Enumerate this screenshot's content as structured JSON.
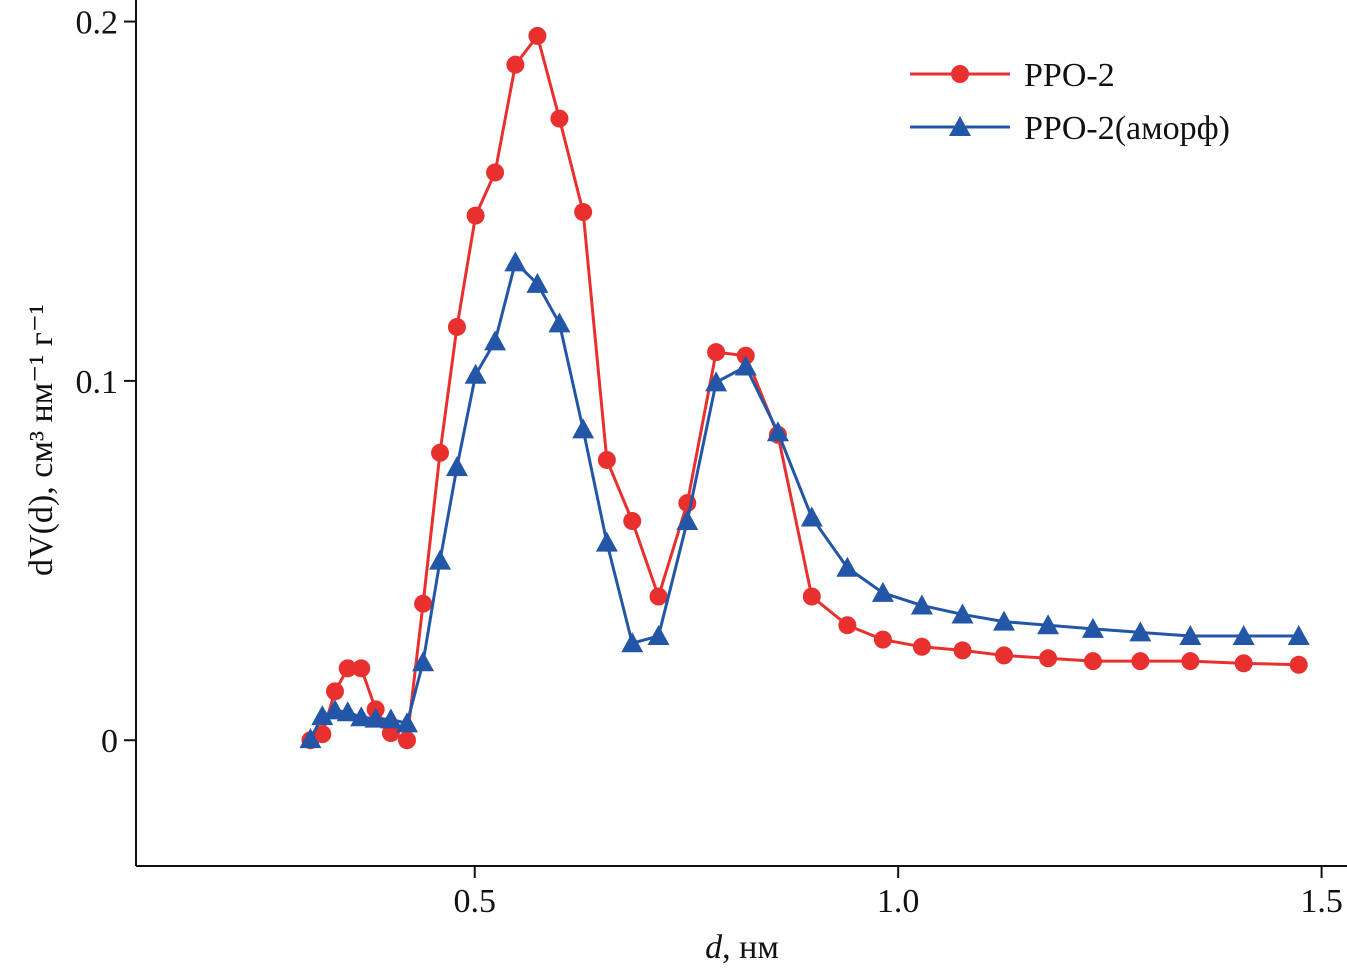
{
  "chart_data": {
    "type": "line",
    "title": "",
    "xlabel_var": "d",
    "xlabel_unit": ", нм",
    "ylabel": "dV(d), см³ нм⁻¹ г⁻¹",
    "xlim": [
      0.1,
      1.53
    ],
    "ylim": [
      -0.035,
      0.206
    ],
    "xticks": [
      {
        "v": 0.5,
        "label": "0.5"
      },
      {
        "v": 1.0,
        "label": "1.0"
      },
      {
        "v": 1.5,
        "label": "1.5"
      }
    ],
    "yticks": [
      {
        "v": 0,
        "label": "0"
      },
      {
        "v": 0.1,
        "label": "0.1"
      },
      {
        "v": 0.2,
        "label": "0.2"
      }
    ],
    "grid": false,
    "legend_position": "top-right",
    "series": [
      {
        "name": "PPO-2",
        "color": "#e8302f",
        "marker": "circle",
        "x": [
          0.306,
          0.32,
          0.335,
          0.35,
          0.366,
          0.383,
          0.401,
          0.42,
          0.439,
          0.459,
          0.479,
          0.501,
          0.524,
          0.548,
          0.574,
          0.6,
          0.628,
          0.656,
          0.686,
          0.717,
          0.751,
          0.785,
          0.82,
          0.858,
          0.898,
          0.94,
          0.982,
          1.028,
          1.076,
          1.125,
          1.177,
          1.23,
          1.286,
          1.345,
          1.408,
          1.473
        ],
        "y": [
          0,
          0.0017,
          0.0136,
          0.02,
          0.02,
          0.0086,
          0.002,
          0,
          0.038,
          0.08,
          0.115,
          0.146,
          0.158,
          0.188,
          0.196,
          0.173,
          0.147,
          0.078,
          0.061,
          0.04,
          0.066,
          0.108,
          0.107,
          0.085,
          0.04,
          0.032,
          0.028,
          0.026,
          0.025,
          0.0236,
          0.0228,
          0.022,
          0.022,
          0.022,
          0.0214,
          0.021
        ]
      },
      {
        "name": "PPO-2(аморф)",
        "color": "#2456a8",
        "marker": "triangle",
        "x": [
          0.306,
          0.32,
          0.335,
          0.35,
          0.366,
          0.383,
          0.401,
          0.42,
          0.439,
          0.459,
          0.479,
          0.501,
          0.524,
          0.548,
          0.574,
          0.6,
          0.628,
          0.656,
          0.686,
          0.717,
          0.751,
          0.785,
          0.82,
          0.858,
          0.898,
          0.94,
          0.982,
          1.028,
          1.076,
          1.125,
          1.177,
          1.23,
          1.286,
          1.345,
          1.408,
          1.473
        ],
        "y": [
          0.0003,
          0.0067,
          0.0083,
          0.0078,
          0.0064,
          0.006,
          0.0058,
          0.0047,
          0.0217,
          0.05,
          0.076,
          0.1017,
          0.111,
          0.133,
          0.127,
          0.116,
          0.0865,
          0.055,
          0.027,
          0.029,
          0.061,
          0.0996,
          0.104,
          0.0857,
          0.062,
          0.048,
          0.041,
          0.0375,
          0.035,
          0.033,
          0.032,
          0.031,
          0.03,
          0.029,
          0.029,
          0.029
        ]
      }
    ]
  }
}
